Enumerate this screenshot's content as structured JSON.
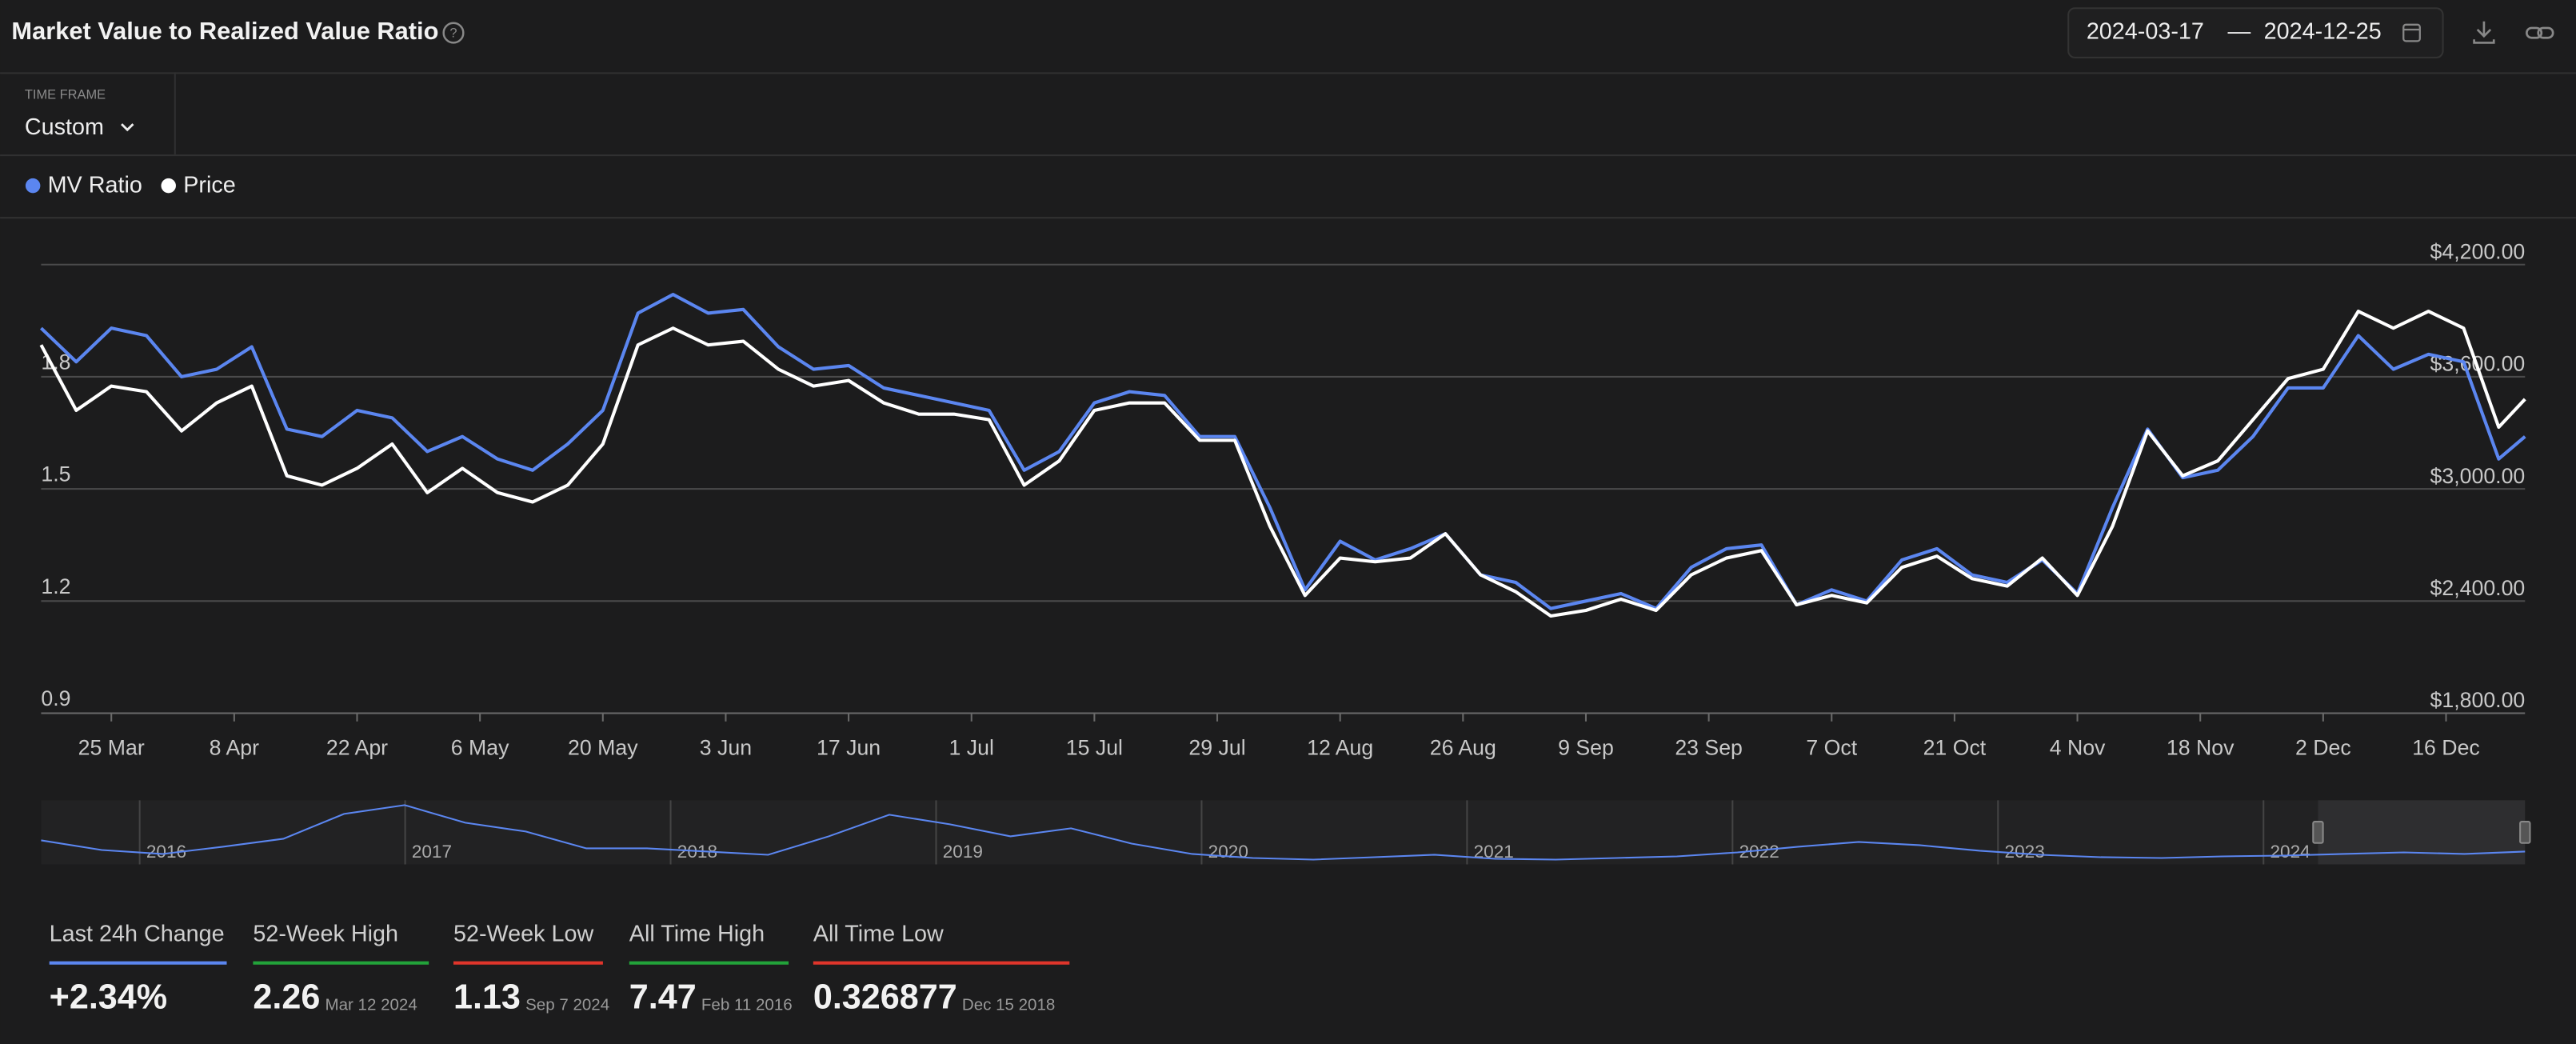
{
  "header": {
    "title": "Market Value to Realized Value Ratio",
    "date_from": "2024-03-17",
    "date_separator": "—",
    "date_to": "2024-12-25"
  },
  "timeframe": {
    "label": "TIME FRAME",
    "value": "Custom"
  },
  "chart_data": {
    "type": "line",
    "x": [
      "2024-03-17",
      "2024-03-21",
      "2024-03-25",
      "2024-03-29",
      "2024-04-02",
      "2024-04-06",
      "2024-04-10",
      "2024-04-14",
      "2024-04-18",
      "2024-04-22",
      "2024-04-26",
      "2024-04-30",
      "2024-05-04",
      "2024-05-08",
      "2024-05-12",
      "2024-05-16",
      "2024-05-20",
      "2024-05-24",
      "2024-05-28",
      "2024-06-01",
      "2024-06-05",
      "2024-06-09",
      "2024-06-13",
      "2024-06-17",
      "2024-06-21",
      "2024-06-25",
      "2024-06-29",
      "2024-07-03",
      "2024-07-07",
      "2024-07-11",
      "2024-07-15",
      "2024-07-19",
      "2024-07-23",
      "2024-07-27",
      "2024-07-31",
      "2024-08-04",
      "2024-08-08",
      "2024-08-12",
      "2024-08-16",
      "2024-08-20",
      "2024-08-24",
      "2024-08-28",
      "2024-09-01",
      "2024-09-05",
      "2024-09-09",
      "2024-09-13",
      "2024-09-17",
      "2024-09-21",
      "2024-09-25",
      "2024-09-29",
      "2024-10-03",
      "2024-10-07",
      "2024-10-11",
      "2024-10-15",
      "2024-10-19",
      "2024-10-23",
      "2024-10-27",
      "2024-10-31",
      "2024-11-04",
      "2024-11-08",
      "2024-11-12",
      "2024-11-16",
      "2024-11-20",
      "2024-11-24",
      "2024-11-28",
      "2024-12-02",
      "2024-12-06",
      "2024-12-10",
      "2024-12-14",
      "2024-12-18",
      "2024-12-22",
      "2024-12-25"
    ],
    "xlim": [
      "2024-03-17",
      "2024-12-25"
    ],
    "xticks": [
      {
        "value": "2024-03-25",
        "label": "25 Mar"
      },
      {
        "value": "2024-04-08",
        "label": "8 Apr"
      },
      {
        "value": "2024-04-22",
        "label": "22 Apr"
      },
      {
        "value": "2024-05-06",
        "label": "6 May"
      },
      {
        "value": "2024-05-20",
        "label": "20 May"
      },
      {
        "value": "2024-06-03",
        "label": "3 Jun"
      },
      {
        "value": "2024-06-17",
        "label": "17 Jun"
      },
      {
        "value": "2024-07-01",
        "label": "1 Jul"
      },
      {
        "value": "2024-07-15",
        "label": "15 Jul"
      },
      {
        "value": "2024-07-29",
        "label": "29 Jul"
      },
      {
        "value": "2024-08-12",
        "label": "12 Aug"
      },
      {
        "value": "2024-08-26",
        "label": "26 Aug"
      },
      {
        "value": "2024-09-09",
        "label": "9 Sep"
      },
      {
        "value": "2024-09-23",
        "label": "23 Sep"
      },
      {
        "value": "2024-10-07",
        "label": "7 Oct"
      },
      {
        "value": "2024-10-21",
        "label": "21 Oct"
      },
      {
        "value": "2024-11-04",
        "label": "4 Nov"
      },
      {
        "value": "2024-11-18",
        "label": "18 Nov"
      },
      {
        "value": "2024-12-02",
        "label": "2 Dec"
      },
      {
        "value": "2024-12-16",
        "label": "16 Dec"
      }
    ],
    "ylim": [
      0.9,
      2.1
    ],
    "yticks": [
      0.9,
      1.2,
      1.5,
      1.8
    ],
    "y2lim": [
      1800,
      4200
    ],
    "y2ticks": [
      {
        "value": 1800,
        "label": "$1,800.00"
      },
      {
        "value": 2400,
        "label": "$2,400.00"
      },
      {
        "value": 3000,
        "label": "$3,000.00"
      },
      {
        "value": 3600,
        "label": "$3,600.00"
      },
      {
        "value": 4200,
        "label": "$4,200.00"
      }
    ],
    "grid": true,
    "series": [
      {
        "name": "MV Ratio",
        "color": "#5b86f0",
        "values": [
          1.93,
          1.84,
          1.93,
          1.91,
          1.8,
          1.82,
          1.88,
          1.66,
          1.64,
          1.71,
          1.69,
          1.6,
          1.64,
          1.58,
          1.55,
          1.62,
          1.71,
          1.97,
          2.02,
          1.97,
          1.98,
          1.88,
          1.82,
          1.83,
          1.77,
          1.75,
          1.73,
          1.71,
          1.55,
          1.6,
          1.73,
          1.76,
          1.75,
          1.64,
          1.64,
          1.45,
          1.23,
          1.36,
          1.31,
          1.34,
          1.38,
          1.27,
          1.25,
          1.18,
          1.2,
          1.22,
          1.18,
          1.29,
          1.34,
          1.35,
          1.19,
          1.23,
          1.2,
          1.31,
          1.34,
          1.27,
          1.25,
          1.31,
          1.22,
          1.45,
          1.66,
          1.53,
          1.55,
          1.64,
          1.77,
          1.77,
          1.91,
          1.82,
          1.86,
          1.84,
          1.58,
          1.64
        ]
      },
      {
        "name": "Price",
        "color": "#ffffff",
        "axis": "y2",
        "values": [
          3770,
          3420,
          3550,
          3520,
          3310,
          3460,
          3550,
          3070,
          3020,
          3110,
          3240,
          2980,
          3110,
          2980,
          2930,
          3020,
          3240,
          3770,
          3860,
          3770,
          3790,
          3640,
          3550,
          3580,
          3460,
          3400,
          3400,
          3370,
          3020,
          3150,
          3420,
          3460,
          3460,
          3260,
          3260,
          2800,
          2430,
          2630,
          2610,
          2630,
          2760,
          2540,
          2450,
          2320,
          2350,
          2410,
          2350,
          2540,
          2630,
          2670,
          2380,
          2430,
          2390,
          2580,
          2640,
          2520,
          2480,
          2630,
          2430,
          2800,
          3310,
          3070,
          3150,
          3370,
          3590,
          3640,
          3950,
          3860,
          3950,
          3860,
          3330,
          3480
        ]
      }
    ]
  },
  "navigator": {
    "labels": [
      "2016",
      "2017",
      "2018",
      "2019",
      "2020",
      "2021",
      "2022",
      "2023",
      "2024"
    ],
    "ylim": [
      0,
      8
    ],
    "values": [
      3.0,
      1.8,
      1.3,
      2.2,
      3.2,
      6.3,
      7.4,
      5.2,
      4.1,
      2.0,
      2.0,
      1.6,
      1.2,
      3.5,
      6.2,
      5.0,
      3.5,
      4.5,
      2.6,
      1.3,
      0.8,
      0.6,
      0.9,
      1.2,
      0.7,
      0.6,
      0.8,
      1.0,
      1.5,
      2.2,
      2.8,
      2.4,
      1.7,
      1.2,
      0.9,
      0.8,
      1.0,
      1.1,
      1.3,
      1.5,
      1.3,
      1.6
    ]
  },
  "stats": [
    {
      "label": "Last 24h Change",
      "value": "+2.34%",
      "color": "#5b86f0"
    },
    {
      "label": "52-Week High",
      "value": "2.26",
      "date": "Mar 12 2024",
      "color": "#22a33a"
    },
    {
      "label": "52-Week Low",
      "value": "1.13",
      "date": "Sep 7 2024",
      "color": "#e0352b"
    },
    {
      "label": "All Time High",
      "value": "7.47",
      "date": "Feb 11 2016",
      "color": "#22a33a"
    },
    {
      "label": "All Time Low",
      "value": "0.326877",
      "date": "Dec 15 2018",
      "color": "#e0352b"
    }
  ]
}
